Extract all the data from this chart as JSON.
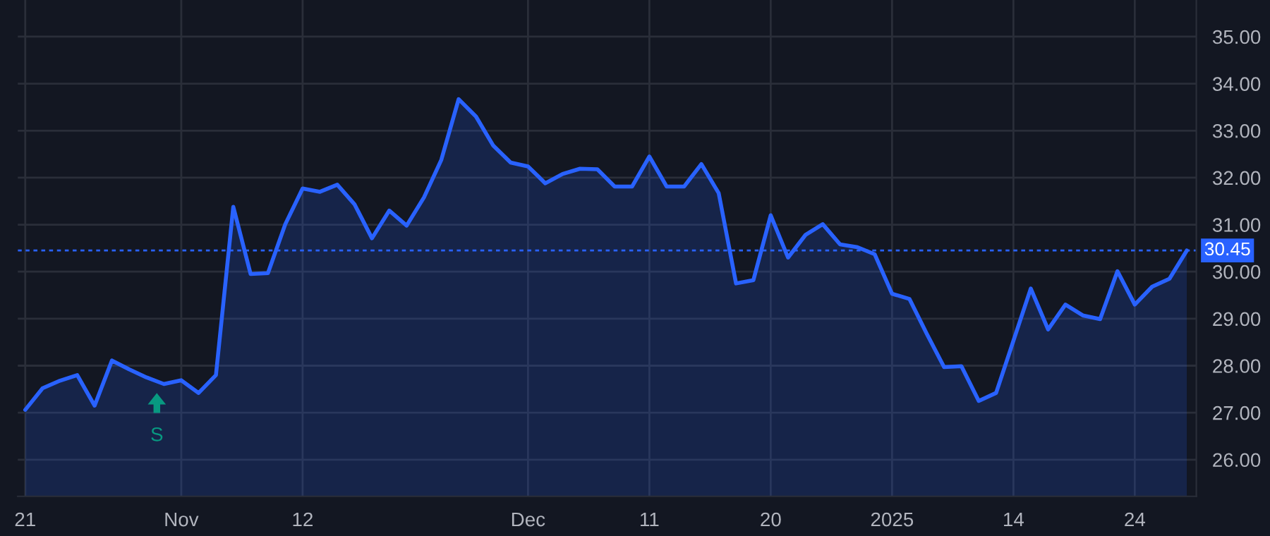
{
  "chart_data": {
    "type": "area",
    "categories": [
      "21",
      null,
      null,
      null,
      null,
      null,
      null,
      null,
      null,
      "Nov",
      null,
      null,
      null,
      null,
      null,
      null,
      "12",
      null,
      null,
      null,
      null,
      null,
      null,
      null,
      null,
      null,
      null,
      null,
      null,
      "Dec",
      null,
      null,
      null,
      null,
      null,
      null,
      "11",
      null,
      null,
      null,
      null,
      null,
      null,
      "20",
      null,
      null,
      null,
      null,
      null,
      null,
      "2025",
      null,
      null,
      null,
      null,
      null,
      null,
      "14",
      null,
      null,
      null,
      null,
      null,
      null,
      "24",
      null,
      null,
      null
    ],
    "series": [
      {
        "color": "#2962ff",
        "values": [
          27.06,
          27.52,
          27.68,
          27.8,
          27.15,
          28.11,
          27.92,
          27.75,
          27.61,
          27.69,
          27.42,
          27.8,
          31.38,
          29.95,
          29.97,
          31.01,
          31.77,
          31.7,
          31.85,
          31.43,
          30.71,
          31.3,
          30.98,
          31.58,
          32.38,
          33.67,
          33.3,
          32.68,
          32.32,
          32.24,
          31.88,
          32.08,
          32.19,
          32.18,
          31.81,
          31.81,
          32.45,
          31.81,
          31.81,
          32.29,
          31.67,
          29.75,
          29.82,
          31.2,
          30.3,
          30.78,
          31.01,
          30.58,
          30.52,
          30.37,
          29.53,
          29.42,
          28.68,
          27.97,
          27.99,
          27.25,
          27.42,
          28.53,
          29.64,
          28.77,
          29.3,
          29.07,
          28.99,
          30.01,
          29.3,
          29.68,
          29.85,
          30.45
        ]
      }
    ],
    "ylim": [
      25.22,
      35.78
    ],
    "yticks": [
      {
        "value": 26,
        "label": "26.00"
      },
      {
        "value": 27,
        "label": "27.00"
      },
      {
        "value": 28,
        "label": "28.00"
      },
      {
        "value": 29,
        "label": "29.00"
      },
      {
        "value": 30,
        "label": "30.00"
      },
      {
        "value": 31,
        "label": "31.00"
      },
      {
        "value": 32,
        "label": "32.00"
      },
      {
        "value": 33,
        "label": "33.00"
      },
      {
        "value": 34,
        "label": "34.00"
      },
      {
        "value": 35,
        "label": "35.00"
      }
    ],
    "grid": true,
    "marker": "none",
    "line_style": "solid",
    "legend": false,
    "ref_lines": [
      {
        "axis": "y",
        "value": 30.45,
        "label": "30.45",
        "color": "#2962ff",
        "line_style": "dotted"
      }
    ],
    "annotations": [
      "S"
    ]
  }
}
